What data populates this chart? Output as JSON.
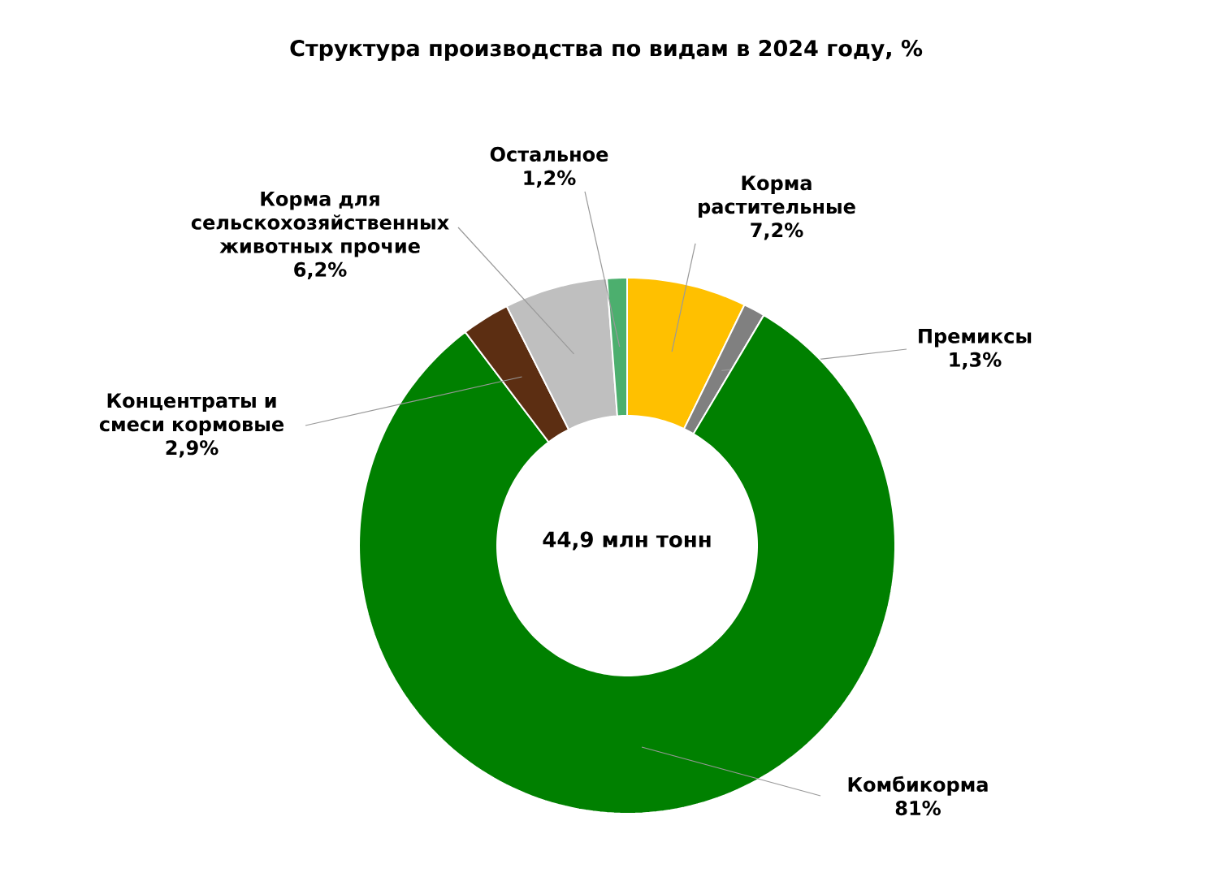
{
  "chart_data": {
    "type": "donut",
    "title": "Структура производства по видам в 2024 году, %",
    "categories": [
      "Корма растительные",
      "Премиксы",
      "Комбикорма",
      "Концентраты и смеси кормовые",
      "Корма для сельскохозяйственных животных прочие",
      "Остальное"
    ],
    "values": [
      7.2,
      1.3,
      81,
      2.9,
      6.2,
      1.2
    ],
    "value_labels": [
      "7,2%",
      "1,3%",
      "81%",
      "2,9%",
      "6,2%",
      "1,2%"
    ],
    "colors": [
      "#ffc000",
      "#808080",
      "#008000",
      "#5c2e12",
      "#bfbfbf",
      "#4caf6e"
    ],
    "annotations": [
      "44,9 млн тонн"
    ]
  }
}
